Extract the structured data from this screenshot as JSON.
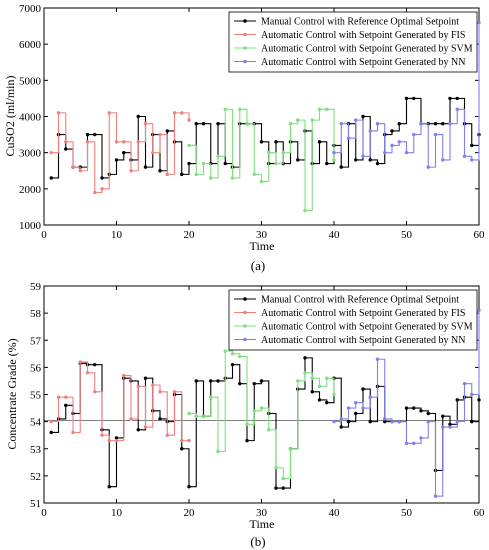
{
  "chart_data": [
    {
      "type": "line",
      "step": true,
      "caption": "(a)",
      "xlabel": "Time",
      "ylabel": "CuSO2 (ml/min)",
      "xlim": [
        0,
        60
      ],
      "ylim": [
        1000,
        7000
      ],
      "xticks": [
        "0",
        "10",
        "20",
        "30",
        "40",
        "50",
        "60"
      ],
      "yticks": [
        "1000",
        "2000",
        "3000",
        "4000",
        "5000",
        "6000",
        "7000"
      ],
      "legend_position": "top-right",
      "series": [
        {
          "name": "Manual Control with Reference Optimal Setpoint",
          "color": "#000000",
          "x": [
            1,
            2,
            3,
            4,
            5,
            6,
            7,
            8,
            9,
            10,
            11,
            12,
            13,
            14,
            15,
            16,
            17,
            18,
            19,
            20,
            21,
            22,
            23,
            24,
            25,
            26,
            27,
            28,
            29,
            30,
            31,
            32,
            33,
            34,
            35,
            36,
            37,
            38,
            39,
            40,
            41,
            42,
            43,
            44,
            45,
            46,
            47,
            48,
            49,
            50,
            51,
            52,
            53,
            54,
            55,
            56,
            57,
            58,
            59,
            60
          ],
          "y": [
            2300,
            3500,
            3100,
            2600,
            2600,
            3500,
            3500,
            2300,
            2400,
            2800,
            3000,
            2800,
            4000,
            2600,
            3500,
            2500,
            3600,
            3300,
            2400,
            2700,
            3800,
            3800,
            2700,
            3800,
            2700,
            2600,
            3800,
            3800,
            3800,
            3300,
            2700,
            3300,
            2700,
            3300,
            2800,
            3600,
            2700,
            3300,
            2700,
            3200,
            2600,
            3800,
            2800,
            4000,
            2800,
            2700,
            3500,
            3600,
            3800,
            4500,
            4500,
            3800,
            3800,
            3800,
            3800,
            4500,
            4500,
            3800,
            3200,
            3500
          ]
        },
        {
          "name": "Automatic Control with Setpoint Generated by FIS",
          "color": "#f08080",
          "x": [
            1,
            2,
            3,
            4,
            5,
            6,
            7,
            8,
            9,
            10,
            11,
            12,
            13,
            14,
            15,
            16,
            17,
            18,
            19,
            20
          ],
          "y": [
            3000,
            4100,
            3300,
            2600,
            2500,
            3300,
            1900,
            2000,
            4100,
            3300,
            3300,
            2500,
            3300,
            3800,
            3000,
            3500,
            2400,
            4100,
            4100,
            3900
          ]
        },
        {
          "name": "Automatic Control with Setpoint Generated by SVM",
          "color": "#7fe07f",
          "x": [
            20,
            21,
            22,
            23,
            24,
            25,
            26,
            27,
            28,
            29,
            30,
            31,
            32,
            33,
            34,
            35,
            36,
            37,
            38,
            39,
            40
          ],
          "y": [
            3200,
            2400,
            2700,
            2300,
            2900,
            4200,
            2300,
            4200,
            3800,
            2400,
            2200,
            3000,
            2700,
            3000,
            3800,
            3900,
            1400,
            3900,
            4200,
            4200,
            2800
          ]
        },
        {
          "name": "Automatic Control with Setpoint Generated by NN",
          "color": "#8080f0",
          "x": [
            40,
            41,
            42,
            43,
            44,
            45,
            46,
            47,
            48,
            49,
            50,
            51,
            52,
            53,
            54,
            55,
            56,
            57,
            58,
            59,
            60
          ],
          "y": [
            3000,
            3800,
            3400,
            3900,
            2900,
            3600,
            3800,
            3000,
            3200,
            3300,
            3000,
            3500,
            3800,
            2600,
            3500,
            2800,
            3800,
            4200,
            2900,
            2800,
            6600
          ]
        }
      ]
    },
    {
      "type": "line",
      "step": true,
      "caption": "(b)",
      "xlabel": "Time",
      "ylabel": "Concentrate Grade (%)",
      "xlim": [
        0,
        60
      ],
      "ylim": [
        51,
        59
      ],
      "xticks": [
        "0",
        "10",
        "20",
        "30",
        "40",
        "50",
        "60"
      ],
      "yticks": [
        "51",
        "52",
        "53",
        "54",
        "55",
        "56",
        "57",
        "58",
        "59"
      ],
      "reference_line": 54.05,
      "legend_position": "top-right",
      "series": [
        {
          "name": "Manual Control with Reference Optimal Setpoint",
          "color": "#000000",
          "x": [
            1,
            2,
            3,
            4,
            5,
            6,
            7,
            8,
            9,
            10,
            11,
            12,
            13,
            14,
            15,
            16,
            17,
            18,
            19,
            20,
            21,
            22,
            23,
            24,
            25,
            26,
            27,
            28,
            29,
            30,
            31,
            32,
            33,
            34,
            35,
            36,
            37,
            38,
            39,
            40,
            41,
            42,
            43,
            44,
            45,
            46,
            47,
            48,
            49,
            50,
            51,
            52,
            53,
            54,
            55,
            56,
            57,
            58,
            59,
            60
          ],
          "y": [
            53.6,
            54.1,
            54.6,
            54.3,
            56.15,
            56.1,
            56.1,
            53.7,
            51.6,
            53.4,
            55.6,
            55.5,
            53.7,
            55.6,
            54.4,
            54.1,
            54.0,
            55.0,
            53.0,
            51.6,
            55.5,
            54.2,
            55.5,
            55.5,
            55.6,
            56.1,
            55.4,
            53.3,
            55.4,
            55.5,
            54.3,
            51.55,
            51.55,
            53.0,
            55.2,
            56.35,
            55.1,
            54.8,
            54.7,
            55.6,
            53.8,
            54.0,
            54.3,
            55.2,
            54.0,
            55.3,
            54.0,
            54.0,
            54.0,
            54.5,
            54.5,
            54.4,
            54.3,
            52.2,
            54.2,
            53.9,
            54.8,
            54.9,
            54.0,
            54.8
          ]
        },
        {
          "name": "Automatic Control with Setpoint Generated by FIS",
          "color": "#f08080",
          "x": [
            1,
            2,
            3,
            4,
            5,
            6,
            7,
            8,
            9,
            10,
            11,
            12,
            13,
            14,
            15,
            16,
            17,
            18,
            19,
            20
          ],
          "y": [
            54.0,
            54.9,
            54.9,
            53.6,
            56.2,
            55.8,
            55.1,
            53.5,
            53.3,
            53.3,
            55.7,
            54.1,
            55.3,
            53.8,
            55.35,
            55.1,
            53.5,
            55.1,
            53.3,
            53.3
          ]
        },
        {
          "name": "Automatic Control with Setpoint Generated by SVM",
          "color": "#7fe07f",
          "x": [
            20,
            21,
            22,
            23,
            24,
            25,
            26,
            27,
            28,
            29,
            30,
            31,
            32,
            33,
            34,
            35,
            36,
            37,
            38,
            39,
            40
          ],
          "y": [
            54.3,
            54.2,
            54.2,
            54.9,
            52.9,
            56.6,
            56.5,
            56.4,
            53.9,
            54.4,
            54.5,
            53.7,
            52.3,
            51.9,
            53.0,
            55.5,
            55.8,
            55.6,
            55.3,
            55.6,
            55.0
          ]
        },
        {
          "name": "Automatic Control with Setpoint Generated by NN",
          "color": "#8080f0",
          "x": [
            40,
            41,
            42,
            43,
            44,
            45,
            46,
            47,
            48,
            49,
            50,
            51,
            52,
            53,
            54,
            55,
            56,
            57,
            58,
            59,
            60
          ],
          "y": [
            54.0,
            54.1,
            54.5,
            54.7,
            54.5,
            54.9,
            56.3,
            54.1,
            54.0,
            54.0,
            53.2,
            53.2,
            53.4,
            54.0,
            51.25,
            53.8,
            53.8,
            54.0,
            55.4,
            55.0,
            58.1
          ]
        }
      ]
    }
  ]
}
